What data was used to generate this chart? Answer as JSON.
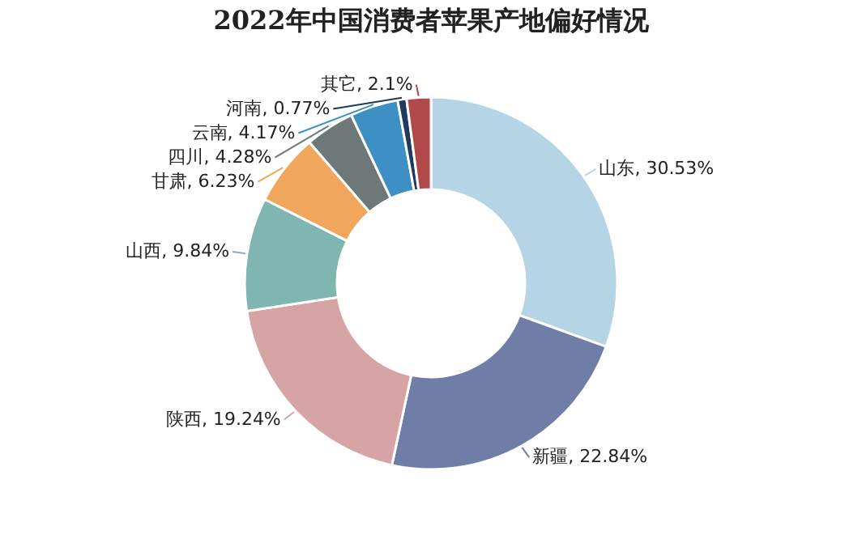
{
  "chart_data": {
    "type": "donut",
    "title": "2022年中国消费者苹果产地偏好情况",
    "categories": [
      "山东",
      "新疆",
      "陕西",
      "山西",
      "甘肃",
      "四川",
      "云南",
      "河南",
      "其它"
    ],
    "values": [
      30.53,
      22.84,
      19.24,
      9.84,
      6.23,
      4.28,
      4.17,
      0.77,
      2.1
    ],
    "value_labels": [
      "30.53%",
      "22.84%",
      "19.24%",
      "9.84%",
      "6.23%",
      "4.28%",
      "4.17%",
      "0.77%",
      "2.1%"
    ],
    "colors": [
      "#b5d4e6",
      "#6f7ea6",
      "#d6a4a4",
      "#80b6b1",
      "#f0a65c",
      "#6f7878",
      "#3d8fc4",
      "#1f3a5c",
      "#b04a4a"
    ],
    "legend": false
  }
}
